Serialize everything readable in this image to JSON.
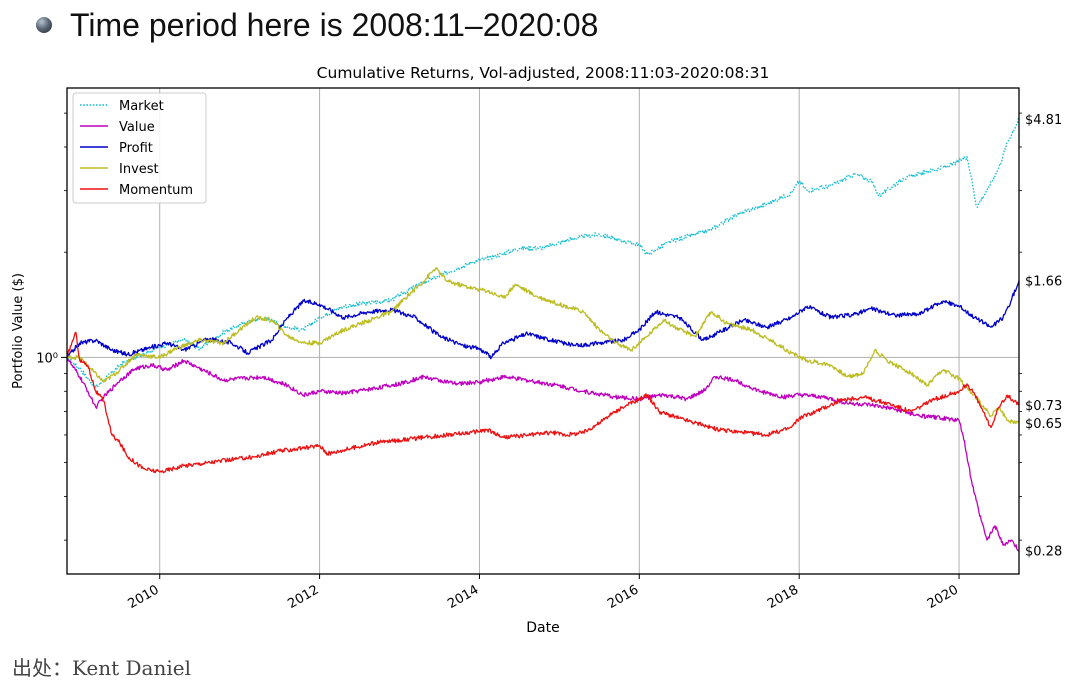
{
  "slide": {
    "bullet_icon": "sphere-bullet-icon",
    "heading": "Time period here is 2008:11–2020:08",
    "source": "出处：Kent Daniel"
  },
  "chart_data": {
    "type": "line",
    "title": "Cumulative Returns, Vol-adjusted, 2008:11:03-2020:08:31",
    "xlabel": "Date",
    "ylabel": "Portfolio Value ($)",
    "y_scale": "log",
    "y_tick": {
      "value": 1,
      "label": "10⁰"
    },
    "xlim": [
      2008.84,
      2020.75
    ],
    "ylim": [
      0.24,
      5.9
    ],
    "x_ticks": [
      2010,
      2012,
      2014,
      2016,
      2018,
      2020
    ],
    "x_tick_labels": [
      "2010",
      "2012",
      "2014",
      "2016",
      "2018",
      "2020"
    ],
    "grid": true,
    "reference_line": 1,
    "legend_position": "top-left",
    "series": [
      {
        "name": "Market",
        "color": "#17becf",
        "style": "dotted",
        "end_label": "$4.81",
        "points": [
          [
            2008.84,
            1.0
          ],
          [
            2009.0,
            0.93
          ],
          [
            2009.2,
            0.82
          ],
          [
            2009.5,
            0.95
          ],
          [
            2009.8,
            1.03
          ],
          [
            2010.0,
            1.07
          ],
          [
            2010.3,
            1.12
          ],
          [
            2010.5,
            1.06
          ],
          [
            2010.8,
            1.18
          ],
          [
            2011.0,
            1.24
          ],
          [
            2011.3,
            1.3
          ],
          [
            2011.6,
            1.22
          ],
          [
            2011.8,
            1.2
          ],
          [
            2012.0,
            1.3
          ],
          [
            2012.3,
            1.4
          ],
          [
            2012.6,
            1.43
          ],
          [
            2012.9,
            1.46
          ],
          [
            2013.2,
            1.6
          ],
          [
            2013.6,
            1.75
          ],
          [
            2013.9,
            1.87
          ],
          [
            2014.2,
            1.95
          ],
          [
            2014.5,
            2.05
          ],
          [
            2014.8,
            2.06
          ],
          [
            2015.2,
            2.2
          ],
          [
            2015.5,
            2.25
          ],
          [
            2015.8,
            2.15
          ],
          [
            2016.0,
            2.1
          ],
          [
            2016.1,
            1.97
          ],
          [
            2016.4,
            2.15
          ],
          [
            2016.7,
            2.25
          ],
          [
            2016.9,
            2.32
          ],
          [
            2017.2,
            2.55
          ],
          [
            2017.6,
            2.75
          ],
          [
            2017.9,
            2.95
          ],
          [
            2018.0,
            3.2
          ],
          [
            2018.1,
            3.0
          ],
          [
            2018.4,
            3.1
          ],
          [
            2018.7,
            3.35
          ],
          [
            2018.9,
            3.2
          ],
          [
            2019.0,
            2.9
          ],
          [
            2019.3,
            3.25
          ],
          [
            2019.6,
            3.4
          ],
          [
            2019.9,
            3.55
          ],
          [
            2020.1,
            3.75
          ],
          [
            2020.15,
            3.3
          ],
          [
            2020.22,
            2.7
          ],
          [
            2020.35,
            3.0
          ],
          [
            2020.5,
            3.5
          ],
          [
            2020.6,
            4.1
          ],
          [
            2020.75,
            4.81
          ]
        ]
      },
      {
        "name": "Value",
        "color": "#bf00bf",
        "style": "solid",
        "end_label": "$0.28",
        "points": [
          [
            2008.84,
            1.0
          ],
          [
            2008.9,
            0.95
          ],
          [
            2009.0,
            0.88
          ],
          [
            2009.1,
            0.8
          ],
          [
            2009.2,
            0.72
          ],
          [
            2009.3,
            0.77
          ],
          [
            2009.5,
            0.86
          ],
          [
            2009.7,
            0.93
          ],
          [
            2009.9,
            0.95
          ],
          [
            2010.1,
            0.92
          ],
          [
            2010.3,
            0.98
          ],
          [
            2010.5,
            0.93
          ],
          [
            2010.8,
            0.86
          ],
          [
            2011.0,
            0.87
          ],
          [
            2011.3,
            0.88
          ],
          [
            2011.6,
            0.83
          ],
          [
            2011.8,
            0.78
          ],
          [
            2012.0,
            0.8
          ],
          [
            2012.3,
            0.79
          ],
          [
            2012.6,
            0.81
          ],
          [
            2013.0,
            0.84
          ],
          [
            2013.3,
            0.88
          ],
          [
            2013.7,
            0.84
          ],
          [
            2014.0,
            0.85
          ],
          [
            2014.3,
            0.88
          ],
          [
            2014.6,
            0.86
          ],
          [
            2015.0,
            0.83
          ],
          [
            2015.3,
            0.8
          ],
          [
            2015.7,
            0.77
          ],
          [
            2016.0,
            0.76
          ],
          [
            2016.3,
            0.78
          ],
          [
            2016.6,
            0.76
          ],
          [
            2016.8,
            0.8
          ],
          [
            2016.95,
            0.88
          ],
          [
            2017.2,
            0.86
          ],
          [
            2017.5,
            0.8
          ],
          [
            2017.8,
            0.77
          ],
          [
            2018.0,
            0.78
          ],
          [
            2018.3,
            0.77
          ],
          [
            2018.6,
            0.74
          ],
          [
            2018.9,
            0.73
          ],
          [
            2019.2,
            0.71
          ],
          [
            2019.5,
            0.68
          ],
          [
            2019.8,
            0.67
          ],
          [
            2020.0,
            0.66
          ],
          [
            2020.05,
            0.6
          ],
          [
            2020.15,
            0.45
          ],
          [
            2020.25,
            0.36
          ],
          [
            2020.35,
            0.3
          ],
          [
            2020.45,
            0.33
          ],
          [
            2020.55,
            0.29
          ],
          [
            2020.65,
            0.3
          ],
          [
            2020.75,
            0.28
          ]
        ]
      },
      {
        "name": "Profit",
        "color": "#0000cc",
        "style": "solid",
        "end_label": "$1.66",
        "points": [
          [
            2008.84,
            1.0
          ],
          [
            2009.0,
            1.1
          ],
          [
            2009.2,
            1.12
          ],
          [
            2009.4,
            1.05
          ],
          [
            2009.6,
            1.02
          ],
          [
            2009.9,
            1.07
          ],
          [
            2010.1,
            1.1
          ],
          [
            2010.3,
            1.05
          ],
          [
            2010.6,
            1.13
          ],
          [
            2010.9,
            1.1
          ],
          [
            2011.1,
            1.03
          ],
          [
            2011.4,
            1.12
          ],
          [
            2011.6,
            1.3
          ],
          [
            2011.8,
            1.45
          ],
          [
            2012.0,
            1.42
          ],
          [
            2012.3,
            1.3
          ],
          [
            2012.6,
            1.35
          ],
          [
            2012.9,
            1.37
          ],
          [
            2013.2,
            1.3
          ],
          [
            2013.5,
            1.15
          ],
          [
            2013.8,
            1.08
          ],
          [
            2014.0,
            1.06
          ],
          [
            2014.15,
            1.0
          ],
          [
            2014.3,
            1.1
          ],
          [
            2014.6,
            1.17
          ],
          [
            2014.9,
            1.12
          ],
          [
            2015.2,
            1.08
          ],
          [
            2015.5,
            1.1
          ],
          [
            2015.8,
            1.12
          ],
          [
            2016.0,
            1.2
          ],
          [
            2016.2,
            1.35
          ],
          [
            2016.5,
            1.3
          ],
          [
            2016.8,
            1.12
          ],
          [
            2017.0,
            1.18
          ],
          [
            2017.3,
            1.28
          ],
          [
            2017.6,
            1.22
          ],
          [
            2017.9,
            1.3
          ],
          [
            2018.1,
            1.4
          ],
          [
            2018.4,
            1.3
          ],
          [
            2018.7,
            1.33
          ],
          [
            2018.9,
            1.38
          ],
          [
            2019.2,
            1.32
          ],
          [
            2019.5,
            1.33
          ],
          [
            2019.8,
            1.45
          ],
          [
            2020.0,
            1.4
          ],
          [
            2020.2,
            1.3
          ],
          [
            2020.4,
            1.22
          ],
          [
            2020.55,
            1.3
          ],
          [
            2020.65,
            1.45
          ],
          [
            2020.75,
            1.66
          ]
        ]
      },
      {
        "name": "Invest",
        "color": "#bcbd22",
        "style": "solid",
        "end_label": "$0.65",
        "points": [
          [
            2008.84,
            1.0
          ],
          [
            2009.0,
            1.0
          ],
          [
            2009.15,
            0.92
          ],
          [
            2009.3,
            0.85
          ],
          [
            2009.5,
            0.92
          ],
          [
            2009.7,
            1.02
          ],
          [
            2010.0,
            1.0
          ],
          [
            2010.2,
            1.06
          ],
          [
            2010.5,
            1.12
          ],
          [
            2010.8,
            1.1
          ],
          [
            2011.0,
            1.2
          ],
          [
            2011.2,
            1.3
          ],
          [
            2011.4,
            1.28
          ],
          [
            2011.6,
            1.15
          ],
          [
            2011.8,
            1.1
          ],
          [
            2012.0,
            1.1
          ],
          [
            2012.3,
            1.2
          ],
          [
            2012.6,
            1.27
          ],
          [
            2012.9,
            1.35
          ],
          [
            2013.1,
            1.5
          ],
          [
            2013.3,
            1.65
          ],
          [
            2013.45,
            1.8
          ],
          [
            2013.6,
            1.65
          ],
          [
            2013.9,
            1.58
          ],
          [
            2014.1,
            1.55
          ],
          [
            2014.3,
            1.48
          ],
          [
            2014.45,
            1.62
          ],
          [
            2014.7,
            1.5
          ],
          [
            2015.0,
            1.42
          ],
          [
            2015.3,
            1.35
          ],
          [
            2015.5,
            1.2
          ],
          [
            2015.7,
            1.1
          ],
          [
            2015.9,
            1.05
          ],
          [
            2016.1,
            1.15
          ],
          [
            2016.3,
            1.28
          ],
          [
            2016.5,
            1.2
          ],
          [
            2016.7,
            1.15
          ],
          [
            2016.9,
            1.35
          ],
          [
            2017.1,
            1.25
          ],
          [
            2017.4,
            1.2
          ],
          [
            2017.7,
            1.1
          ],
          [
            2017.9,
            1.03
          ],
          [
            2018.1,
            0.98
          ],
          [
            2018.4,
            0.95
          ],
          [
            2018.6,
            0.88
          ],
          [
            2018.8,
            0.9
          ],
          [
            2018.95,
            1.05
          ],
          [
            2019.1,
            0.98
          ],
          [
            2019.4,
            0.9
          ],
          [
            2019.6,
            0.83
          ],
          [
            2019.8,
            0.92
          ],
          [
            2020.0,
            0.87
          ],
          [
            2020.1,
            0.82
          ],
          [
            2020.25,
            0.75
          ],
          [
            2020.4,
            0.68
          ],
          [
            2020.5,
            0.72
          ],
          [
            2020.6,
            0.66
          ],
          [
            2020.75,
            0.65
          ]
        ]
      },
      {
        "name": "Momentum",
        "color": "#ee1111",
        "style": "solid",
        "end_label": "$0.73",
        "points": [
          [
            2008.84,
            1.0
          ],
          [
            2008.9,
            1.1
          ],
          [
            2008.95,
            1.18
          ],
          [
            2009.0,
            0.98
          ],
          [
            2009.1,
            0.95
          ],
          [
            2009.2,
            0.8
          ],
          [
            2009.3,
            0.75
          ],
          [
            2009.4,
            0.6
          ],
          [
            2009.5,
            0.57
          ],
          [
            2009.6,
            0.52
          ],
          [
            2009.8,
            0.48
          ],
          [
            2010.0,
            0.47
          ],
          [
            2010.3,
            0.49
          ],
          [
            2010.6,
            0.5
          ],
          [
            2010.9,
            0.51
          ],
          [
            2011.2,
            0.52
          ],
          [
            2011.5,
            0.54
          ],
          [
            2011.8,
            0.55
          ],
          [
            2012.0,
            0.56
          ],
          [
            2012.1,
            0.53
          ],
          [
            2012.4,
            0.55
          ],
          [
            2012.7,
            0.57
          ],
          [
            2013.0,
            0.58
          ],
          [
            2013.3,
            0.59
          ],
          [
            2013.6,
            0.6
          ],
          [
            2013.9,
            0.61
          ],
          [
            2014.1,
            0.62
          ],
          [
            2014.3,
            0.59
          ],
          [
            2014.6,
            0.6
          ],
          [
            2014.9,
            0.61
          ],
          [
            2015.1,
            0.6
          ],
          [
            2015.3,
            0.61
          ],
          [
            2015.5,
            0.65
          ],
          [
            2015.7,
            0.7
          ],
          [
            2015.85,
            0.73
          ],
          [
            2016.0,
            0.76
          ],
          [
            2016.1,
            0.78
          ],
          [
            2016.25,
            0.7
          ],
          [
            2016.5,
            0.67
          ],
          [
            2016.8,
            0.64
          ],
          [
            2017.0,
            0.62
          ],
          [
            2017.3,
            0.61
          ],
          [
            2017.6,
            0.6
          ],
          [
            2017.9,
            0.63
          ],
          [
            2018.0,
            0.67
          ],
          [
            2018.2,
            0.7
          ],
          [
            2018.5,
            0.75
          ],
          [
            2018.8,
            0.77
          ],
          [
            2019.1,
            0.74
          ],
          [
            2019.4,
            0.7
          ],
          [
            2019.7,
            0.76
          ],
          [
            2020.0,
            0.8
          ],
          [
            2020.1,
            0.84
          ],
          [
            2020.2,
            0.78
          ],
          [
            2020.3,
            0.7
          ],
          [
            2020.4,
            0.63
          ],
          [
            2020.5,
            0.72
          ],
          [
            2020.6,
            0.78
          ],
          [
            2020.75,
            0.73
          ]
        ]
      }
    ]
  }
}
